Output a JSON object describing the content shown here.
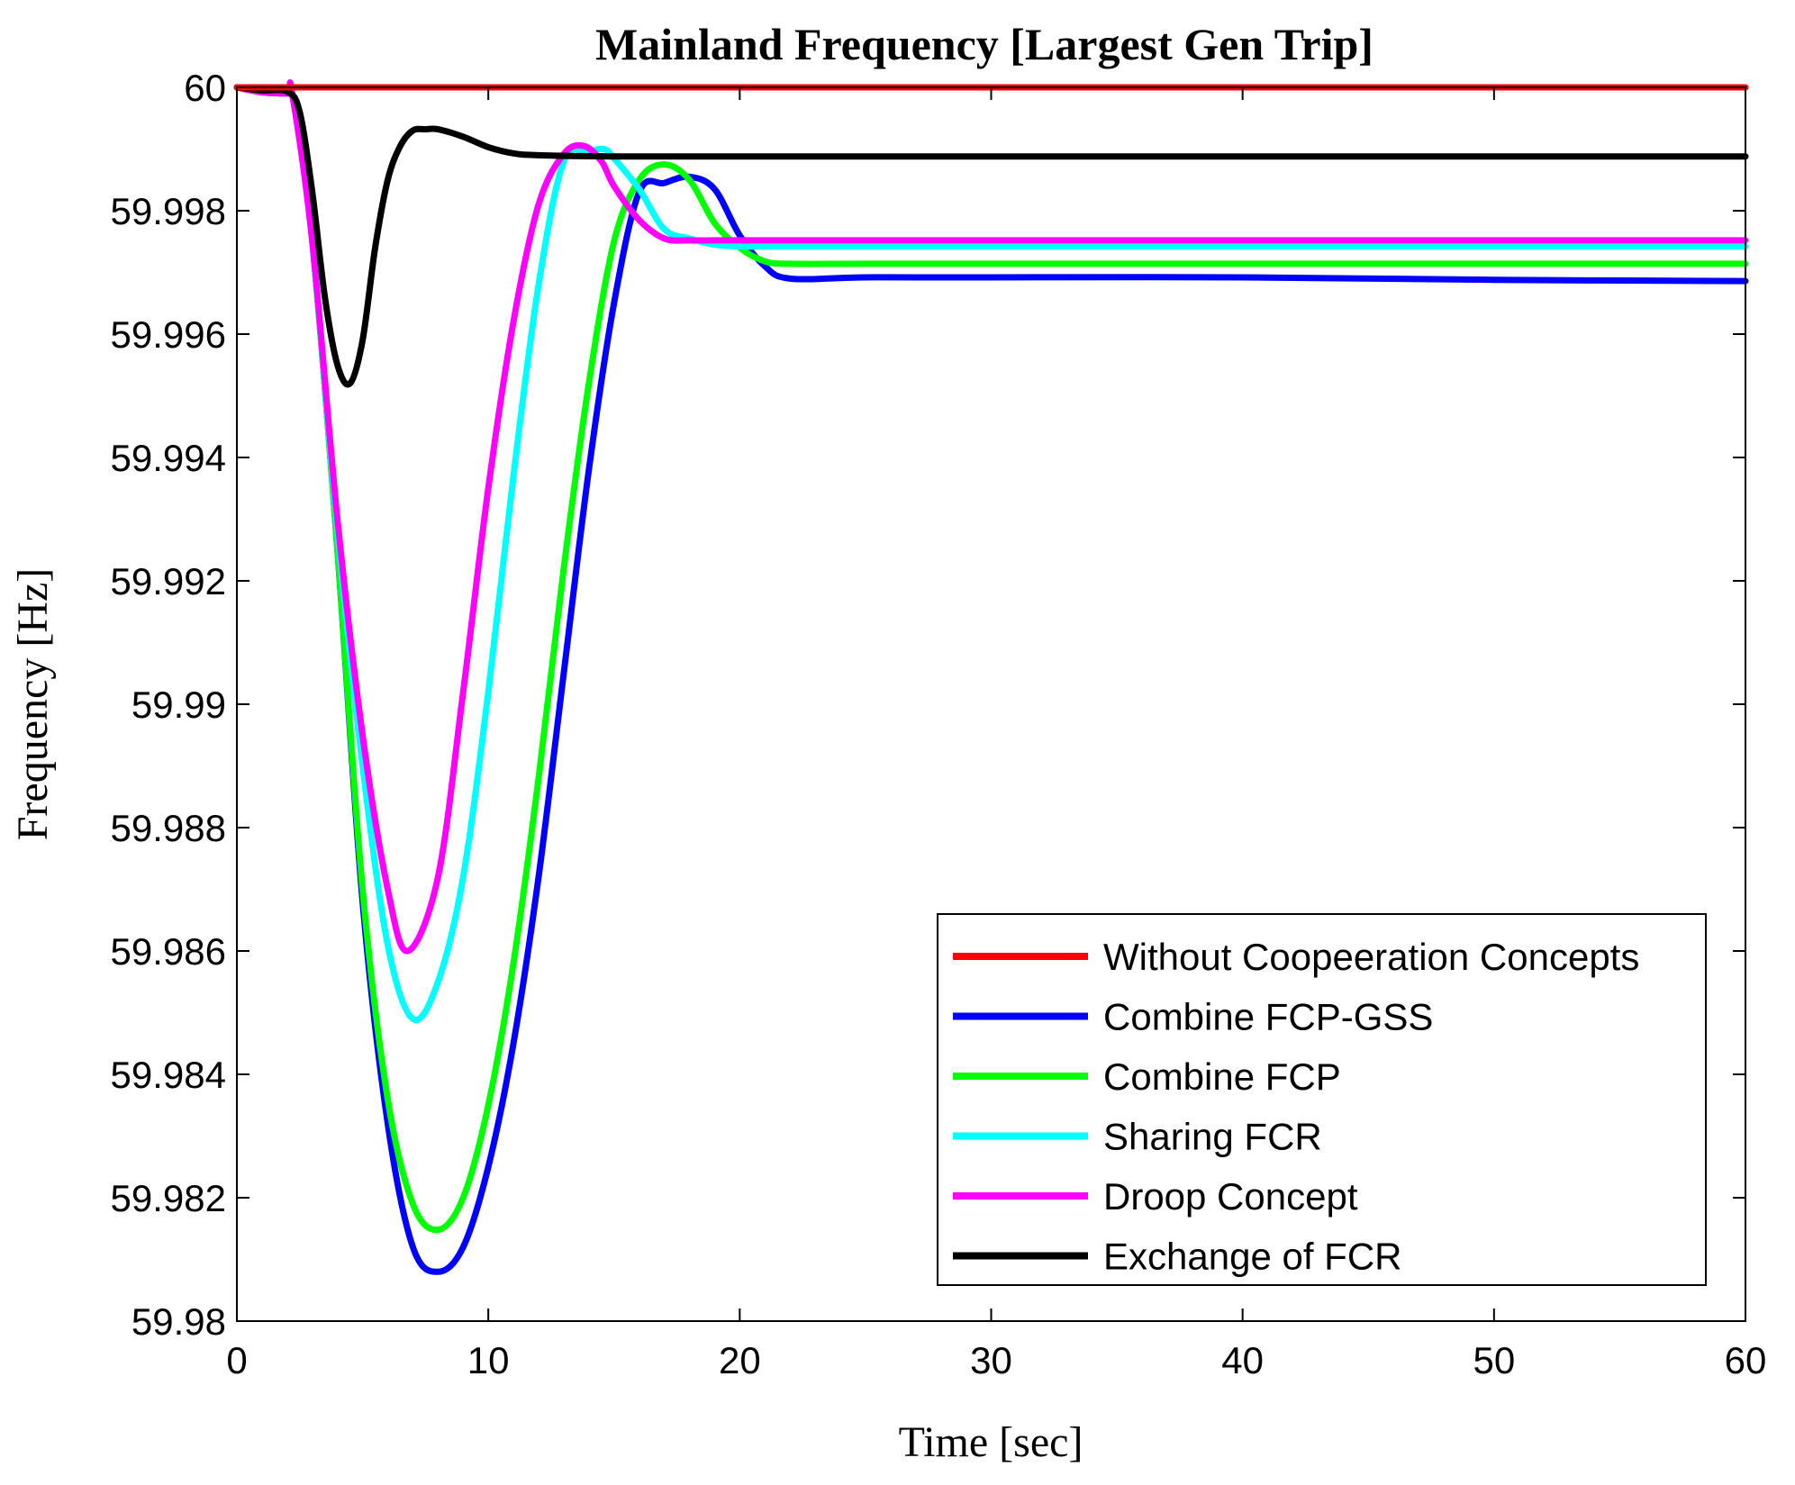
{
  "chart_data": {
    "type": "line",
    "title": "Mainland Frequency [Largest Gen Trip]",
    "xlabel": "Time [sec]",
    "ylabel": "Frequency [Hz]",
    "xlim": [
      0,
      60
    ],
    "ylim": [
      59.98,
      60
    ],
    "x_ticks": [
      0,
      10,
      20,
      30,
      40,
      50,
      60
    ],
    "x_tick_labels": [
      "0",
      "10",
      "20",
      "30",
      "40",
      "50",
      "60"
    ],
    "y_ticks": [
      59.98,
      59.982,
      59.984,
      59.986,
      59.988,
      59.99,
      59.992,
      59.994,
      59.996,
      59.998,
      60
    ],
    "y_tick_labels": [
      "59.98",
      "59.982",
      "59.984",
      "59.986",
      "59.988",
      "59.99",
      "59.992",
      "59.994",
      "59.996",
      "59.998",
      "60"
    ],
    "grid": false,
    "legend_position": "bottom-right",
    "series": [
      {
        "name": "Without Coopeeration Concepts",
        "color": "#ff0000",
        "x": [
          0,
          60
        ],
        "y": [
          60.0,
          60.0
        ]
      },
      {
        "name": "Combine FCP-GSS",
        "color": "#0000ff",
        "x": [
          0,
          1,
          2,
          2.2,
          3,
          4,
          5,
          6,
          7,
          8,
          9,
          10,
          11,
          12,
          13,
          14,
          15,
          16,
          17,
          18,
          19,
          20,
          21,
          22,
          25,
          30,
          40,
          50,
          60
        ],
        "y": [
          60.0,
          59.99992,
          59.9999,
          59.9999,
          59.9975,
          59.9925,
          59.9868,
          59.9832,
          59.9812,
          59.9808,
          59.9812,
          59.9825,
          59.9845,
          59.9872,
          59.9905,
          59.9938,
          59.9965,
          59.9983,
          59.99845,
          59.99855,
          59.99835,
          59.9976,
          59.9971,
          59.9969,
          59.99692,
          59.99692,
          59.99692,
          59.99688,
          59.99686
        ]
      },
      {
        "name": "Combine FCP",
        "color": "#00ff00",
        "x": [
          0,
          1,
          2,
          2.2,
          3,
          4,
          5,
          6,
          7,
          8,
          9,
          10,
          11,
          12,
          13,
          14,
          15,
          16,
          17,
          18,
          19,
          20,
          21,
          22,
          25,
          30,
          40,
          50,
          60
        ],
        "y": [
          60.0,
          59.99992,
          59.9999,
          59.9999,
          59.9975,
          59.9925,
          59.987,
          59.9836,
          59.9819,
          59.98148,
          59.982,
          59.9835,
          59.9858,
          59.9888,
          59.9922,
          59.9952,
          59.9975,
          59.9985,
          59.99875,
          59.9985,
          59.9978,
          59.9974,
          59.99718,
          59.99714,
          59.99714,
          59.99714,
          59.99714,
          59.99714,
          59.99714
        ]
      },
      {
        "name": "Sharing FCR",
        "color": "#00ffff",
        "x": [
          0,
          1,
          2,
          2.2,
          3,
          4,
          5,
          6,
          7,
          8,
          9,
          10,
          11,
          12,
          13,
          14,
          14.6,
          15,
          16,
          17,
          18,
          19,
          20,
          21,
          22,
          25,
          30,
          40,
          50,
          60
        ],
        "y": [
          60.0,
          59.99992,
          59.9999,
          59.9999,
          59.9975,
          59.9928,
          59.989,
          59.9861,
          59.9849,
          59.9855,
          59.9872,
          59.9902,
          59.9937,
          59.9968,
          59.9988,
          59.99895,
          59.999,
          59.99885,
          59.99835,
          59.9977,
          59.99755,
          59.99745,
          59.99742,
          59.99742,
          59.99742,
          59.99742,
          59.99742,
          59.99742,
          59.99742,
          59.99742
        ]
      },
      {
        "name": "Droop Concept",
        "color": "#ff00ff",
        "x": [
          0,
          1,
          2,
          2.2,
          3,
          4,
          5,
          6,
          6.8,
          8,
          9,
          10,
          11,
          12,
          13,
          13.8,
          14.5,
          15,
          16,
          17,
          18,
          19,
          20,
          25,
          30,
          40,
          50,
          60
        ],
        "y": [
          60.0,
          59.99992,
          59.9999,
          59.9999,
          59.9975,
          59.993,
          59.9895,
          59.987,
          59.986,
          59.9872,
          59.9902,
          59.9935,
          59.9962,
          59.9981,
          59.99892,
          59.99905,
          59.9988,
          59.9984,
          59.99785,
          59.99755,
          59.99752,
          59.99752,
          59.99752,
          59.99752,
          59.99752,
          59.99752,
          59.99752,
          59.99752
        ]
      },
      {
        "name": "Exchange of FCR",
        "color": "#000000",
        "x": [
          0,
          1,
          2,
          2.5,
          3,
          3.5,
          4,
          4.5,
          5,
          5.5,
          6,
          6.5,
          7,
          7.5,
          8,
          9,
          10,
          11,
          12,
          15,
          20,
          30,
          40,
          50,
          60
        ],
        "y": [
          60.0,
          59.99995,
          59.99993,
          59.9996,
          59.9983,
          59.9966,
          59.9955,
          59.9952,
          59.9959,
          59.9974,
          59.9985,
          59.99905,
          59.9993,
          59.99932,
          59.99932,
          59.9992,
          59.99903,
          59.99893,
          59.9989,
          59.99888,
          59.99888,
          59.99888,
          59.99888,
          59.99888,
          59.99888
        ]
      }
    ]
  }
}
